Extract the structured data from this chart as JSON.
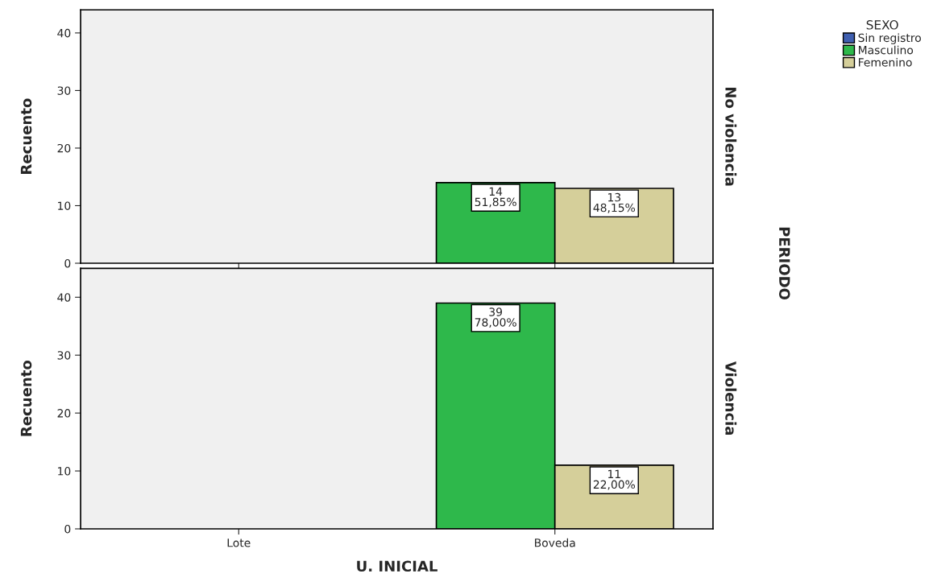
{
  "chart_data": [
    {
      "type": "bar",
      "ylabel": "Recuento",
      "legend_title": "SEXO",
      "legend": "top right",
      "tick_labels": "y",
      "ylim": [
        0,
        44
      ],
      "yticks": [
        0,
        10,
        20,
        30,
        40
      ],
      "grid": false,
      "annotations": [
        "No violencia",
        "PERIODO"
      ],
      "series": [
        {
          "name": "Sin registro",
          "color": "#3f5fb0",
          "values": [
            null,
            null
          ],
          "value_labels": [
            null,
            null
          ]
        },
        {
          "name": "Masculino",
          "color": "#2eb84b",
          "values": [
            null,
            14
          ],
          "value_labels": [
            null,
            "14\n51,85%"
          ]
        },
        {
          "name": "Femenino",
          "color": "#d5cf9a",
          "values": [
            null,
            13
          ],
          "value_labels": [
            null,
            "13\n48,15%"
          ]
        }
      ]
    },
    {
      "type": "bar",
      "categories": [
        "Lote",
        "Boveda"
      ],
      "xlabel": "U. INICIAL",
      "ylabel": "Recuento",
      "ylim": [
        0,
        45
      ],
      "yticks": [
        0,
        10,
        20,
        30,
        40
      ],
      "grid": false,
      "annotations": [
        "Violencia"
      ],
      "series": [
        {
          "color": "#2eb84b",
          "values": [
            null,
            39
          ],
          "value_labels": [
            null,
            "39\n78,00%"
          ]
        },
        {
          "color": "#d5cf9a",
          "values": [
            null,
            11
          ],
          "value_labels": [
            null,
            "11\n22,00%"
          ]
        }
      ]
    }
  ]
}
